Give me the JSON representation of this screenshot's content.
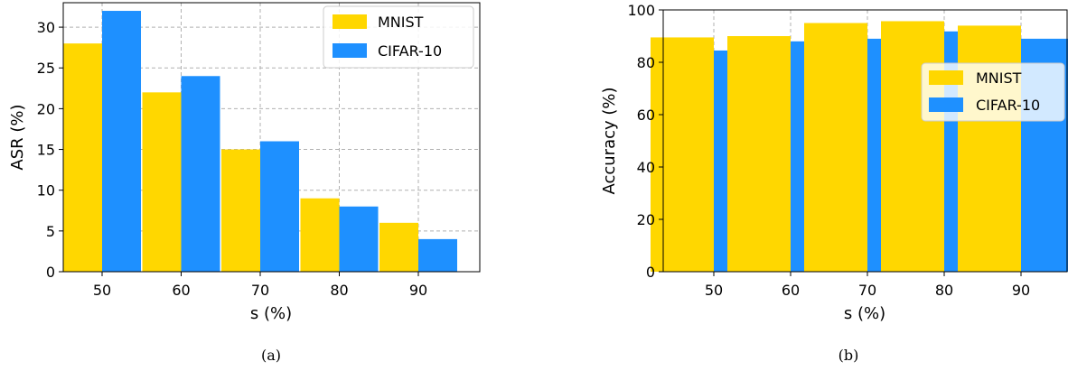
{
  "chart_data": [
    {
      "type": "bar",
      "categories": [
        "50",
        "60",
        "70",
        "80",
        "90"
      ],
      "series": [
        {
          "name": "MNIST",
          "values": [
            28,
            22,
            15,
            9,
            6
          ],
          "color": "#FFD700"
        },
        {
          "name": "CIFAR-10",
          "values": [
            32,
            24,
            16,
            8,
            4
          ],
          "color": "#1E90FF"
        }
      ],
      "xlabel": "s (%)",
      "ylabel": "ASR (%)",
      "ylim": [
        0,
        33
      ],
      "yticks": [
        0,
        5,
        10,
        15,
        20,
        25,
        30
      ],
      "grid": true,
      "legend": "top-right",
      "caption": "(a)"
    },
    {
      "type": "bar",
      "categories": [
        "50",
        "60",
        "70",
        "80",
        "90"
      ],
      "series": [
        {
          "name": "MNIST",
          "values": [
            89.5,
            90,
            95,
            95.7,
            94
          ],
          "color": "#FFD700"
        },
        {
          "name": "CIFAR-10",
          "values": [
            84.5,
            88,
            89,
            91.8,
            89
          ],
          "color": "#1E90FF"
        }
      ],
      "xlabel": "s (%)",
      "ylabel": "Accuracy (%)",
      "ylim": [
        0,
        100
      ],
      "yticks": [
        0,
        20,
        40,
        60,
        80,
        100
      ],
      "grid": true,
      "legend": "center-right",
      "caption": "(b)"
    }
  ]
}
